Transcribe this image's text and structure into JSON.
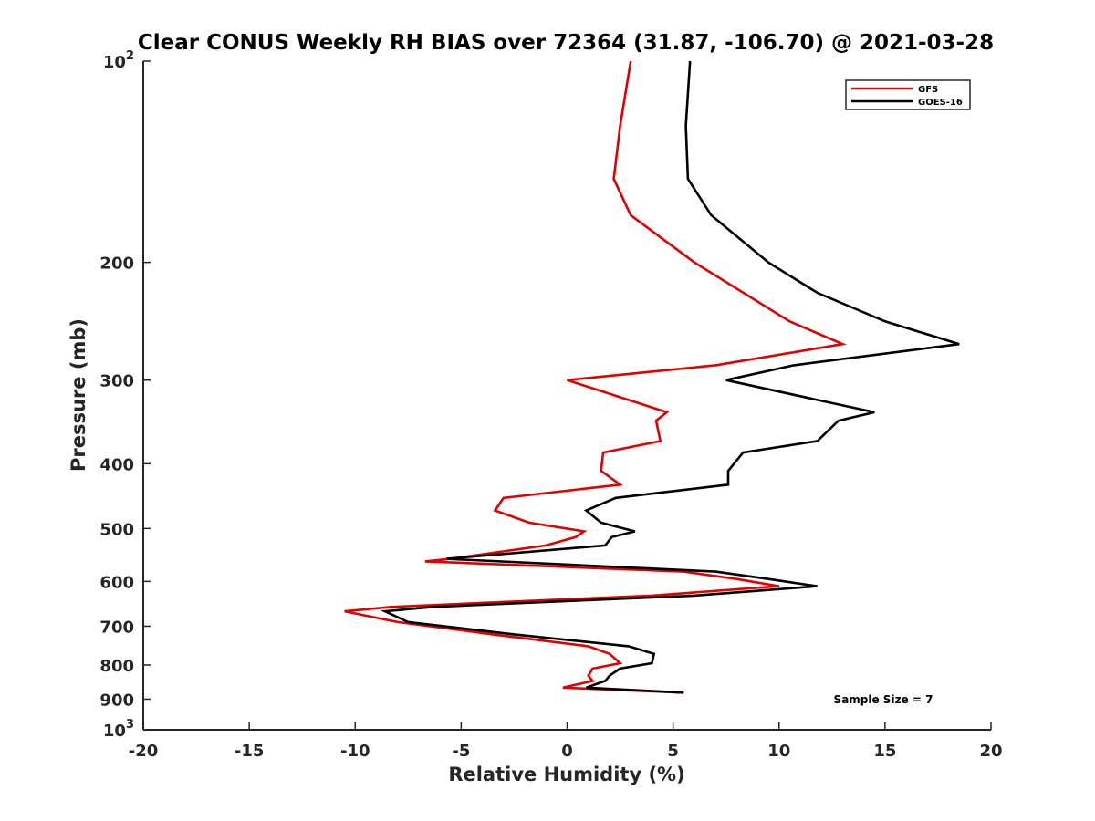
{
  "chart_data": {
    "type": "line",
    "title": "Clear CONUS Weekly RH BIAS over 72364 (31.87, -106.70) @ 2021-03-28",
    "xlabel": "Relative Humidity (%)",
    "ylabel": "Pressure (mb)",
    "xlim": [
      -20,
      20
    ],
    "ylim": [
      100,
      1000
    ],
    "y_scale": "log",
    "y_reversed": true,
    "grid": false,
    "legend_position": "top-right",
    "x_ticks": [
      -20,
      -15,
      -10,
      -5,
      0,
      5,
      10,
      15,
      20
    ],
    "x_tick_labels": [
      "-20",
      "-15",
      "-10",
      "-5",
      "0",
      "5",
      "10",
      "15",
      "20"
    ],
    "y_ticks": [
      100,
      200,
      300,
      400,
      500,
      600,
      700,
      800,
      900,
      1000
    ],
    "y_tick_labels": [
      {
        "base": "10",
        "exp": "2"
      },
      {
        "base": "200",
        "exp": ""
      },
      {
        "base": "300",
        "exp": ""
      },
      {
        "base": "400",
        "exp": ""
      },
      {
        "base": "500",
        "exp": ""
      },
      {
        "base": "600",
        "exp": ""
      },
      {
        "base": "700",
        "exp": ""
      },
      {
        "base": "800",
        "exp": ""
      },
      {
        "base": "900",
        "exp": ""
      },
      {
        "base": "10",
        "exp": "3"
      }
    ],
    "annotation": "Sample Size = 7",
    "series": [
      {
        "name": "GFS",
        "color": "#e00000",
        "points": [
          [
            3.0,
            100
          ],
          [
            2.5,
            125
          ],
          [
            2.2,
            150
          ],
          [
            3.0,
            170
          ],
          [
            6.0,
            200
          ],
          [
            10.5,
            245
          ],
          [
            13.0,
            265
          ],
          [
            7.0,
            285
          ],
          [
            0.0,
            300
          ],
          [
            4.7,
            335
          ],
          [
            4.2,
            345
          ],
          [
            4.4,
            370
          ],
          [
            1.7,
            385
          ],
          [
            1.6,
            410
          ],
          [
            2.5,
            430
          ],
          [
            -3.0,
            450
          ],
          [
            -3.4,
            470
          ],
          [
            -1.8,
            490
          ],
          [
            0.8,
            505
          ],
          [
            0.4,
            515
          ],
          [
            -1.0,
            530
          ],
          [
            -5.5,
            555
          ],
          [
            -6.7,
            560
          ],
          [
            5.5,
            580
          ],
          [
            8.0,
            595
          ],
          [
            10.0,
            610
          ],
          [
            4.0,
            630
          ],
          [
            -8.3,
            655
          ],
          [
            -10.5,
            665
          ],
          [
            -8.0,
            690
          ],
          [
            -3.5,
            720
          ],
          [
            1.0,
            750
          ],
          [
            2.0,
            770
          ],
          [
            2.5,
            795
          ],
          [
            1.2,
            810
          ],
          [
            1.0,
            830
          ],
          [
            1.2,
            845
          ],
          [
            -0.2,
            865
          ],
          [
            5.5,
            880
          ]
        ]
      },
      {
        "name": "GOES-16",
        "color": "#000000",
        "points": [
          [
            5.8,
            100
          ],
          [
            5.6,
            125
          ],
          [
            5.7,
            150
          ],
          [
            6.8,
            170
          ],
          [
            9.5,
            200
          ],
          [
            11.8,
            222
          ],
          [
            15.0,
            245
          ],
          [
            18.5,
            265
          ],
          [
            10.7,
            285
          ],
          [
            7.5,
            300
          ],
          [
            14.5,
            335
          ],
          [
            12.8,
            345
          ],
          [
            11.8,
            370
          ],
          [
            8.3,
            385
          ],
          [
            7.6,
            410
          ],
          [
            7.6,
            430
          ],
          [
            2.3,
            450
          ],
          [
            0.9,
            470
          ],
          [
            1.6,
            490
          ],
          [
            3.2,
            505
          ],
          [
            2.1,
            515
          ],
          [
            1.8,
            530
          ],
          [
            -5.7,
            555
          ],
          [
            7.0,
            580
          ],
          [
            9.5,
            595
          ],
          [
            11.8,
            610
          ],
          [
            6.0,
            630
          ],
          [
            -6.3,
            655
          ],
          [
            -8.6,
            665
          ],
          [
            -7.5,
            690
          ],
          [
            -2.5,
            720
          ],
          [
            2.9,
            750
          ],
          [
            4.1,
            770
          ],
          [
            4.0,
            795
          ],
          [
            2.5,
            810
          ],
          [
            2.0,
            830
          ],
          [
            1.8,
            845
          ],
          [
            0.9,
            865
          ],
          [
            5.5,
            880
          ]
        ]
      }
    ]
  }
}
